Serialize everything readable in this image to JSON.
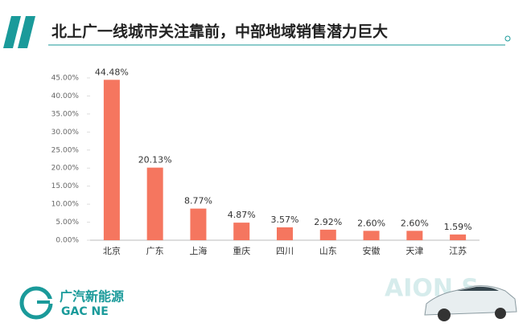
{
  "chart_data": {
    "type": "bar",
    "title": "北上广一线城市关注靠前，中部地域销售潜力巨大",
    "categories": [
      "北京",
      "广东",
      "上海",
      "重庆",
      "四川",
      "山东",
      "安徽",
      "天津",
      "江苏"
    ],
    "values": [
      44.48,
      20.13,
      8.77,
      4.87,
      3.57,
      2.92,
      2.6,
      2.6,
      1.59
    ],
    "value_labels": [
      "44.48%",
      "20.13%",
      "8.77%",
      "4.87%",
      "3.57%",
      "2.92%",
      "2.60%",
      "2.60%",
      "1.59%"
    ],
    "color": "#f5765f",
    "ylim": [
      0,
      45
    ],
    "yticks": [
      {
        "value": 0,
        "label": "0.00%"
      },
      {
        "value": 5,
        "label": "5.00%"
      },
      {
        "value": 10,
        "label": "10.00%"
      },
      {
        "value": 15,
        "label": "15.00%"
      },
      {
        "value": 20,
        "label": "20.00%"
      },
      {
        "value": 25,
        "label": "25.00%"
      },
      {
        "value": 30,
        "label": "30.00%"
      },
      {
        "value": 35,
        "label": "35.00%"
      },
      {
        "value": 40,
        "label": "40.00%"
      },
      {
        "value": 45,
        "label": "45.00%"
      }
    ],
    "grid": false
  },
  "branding": {
    "logo_cn": "广汽新能源",
    "logo_en": "GAC NE",
    "watermark": "AION S"
  }
}
